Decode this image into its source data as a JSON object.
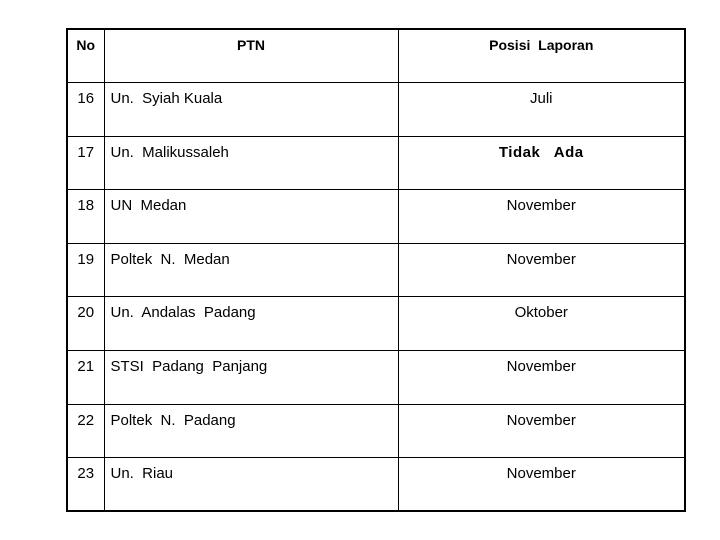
{
  "headers": {
    "no": "No",
    "ptn": "PTN",
    "posisi": "Posisi  Laporan"
  },
  "rows": [
    {
      "no": "16",
      "ptn": "Un.  Syiah Kuala",
      "posisi": "Juli"
    },
    {
      "no": "17",
      "ptn": "Un.  Malikussaleh",
      "posisi": "Tidak   Ada"
    },
    {
      "no": "18",
      "ptn": "UN  Medan",
      "posisi": "November"
    },
    {
      "no": "19",
      "ptn": "Poltek  N.  Medan",
      "posisi": "November"
    },
    {
      "no": "20",
      "ptn": "Un.  Andalas  Padang",
      "posisi": "Oktober"
    },
    {
      "no": "21",
      "ptn": "STSI  Padang  Panjang",
      "posisi": "November"
    },
    {
      "no": "22",
      "ptn": "Poltek  N.  Padang",
      "posisi": "November"
    },
    {
      "no": "23",
      "ptn": "Un.  Riau",
      "posisi": "November"
    }
  ]
}
